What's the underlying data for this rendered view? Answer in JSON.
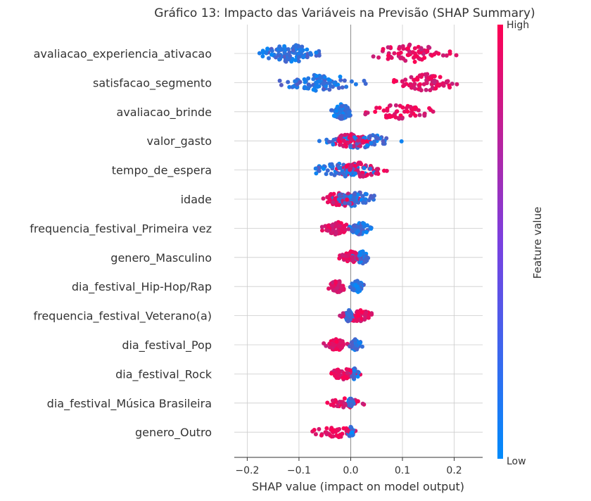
{
  "chart_data": {
    "type": "scatter",
    "title": "Gráfico 13: Impacto das Variáveis na Previsão (SHAP Summary)",
    "xlabel": "SHAP value (impact on model output)",
    "xlim": [
      -0.225,
      0.255
    ],
    "xticks": [
      -0.2,
      -0.1,
      0.0,
      0.1,
      0.2
    ],
    "xtick_labels": [
      "−0.2",
      "−0.1",
      "0.0",
      "0.1",
      "0.2"
    ],
    "colorbar": {
      "label": "Feature value",
      "high": "High",
      "low": "Low"
    },
    "colors": {
      "low": "#008bfb",
      "high": "#ff0052",
      "grid": "#cccccc",
      "zero_line": "#999999"
    },
    "features": [
      {
        "name": "avaliacao_experiencia_ativacao",
        "low_range": [
          -0.2,
          -0.03
        ],
        "high_range": [
          0.0,
          0.23
        ],
        "density": 1.0
      },
      {
        "name": "satisfacao_segmento",
        "low_range": [
          -0.17,
          0.05
        ],
        "high_range": [
          0.06,
          0.235
        ],
        "density": 0.95
      },
      {
        "name": "avaliacao_brinde",
        "low_range": [
          -0.045,
          0.01
        ],
        "high_range": [
          0.0,
          0.185
        ],
        "density": 0.8
      },
      {
        "name": "valor_gasto",
        "low_range": [
          -0.07,
          0.11
        ],
        "high_range": [
          -0.05,
          0.05
        ],
        "density": 0.8
      },
      {
        "name": "tempo_de_espera",
        "low_range": [
          -0.095,
          0.06
        ],
        "high_range": [
          -0.05,
          0.09
        ],
        "density": 0.8
      },
      {
        "name": "idade",
        "low_range": [
          -0.05,
          0.065
        ],
        "high_range": [
          -0.065,
          0.03
        ],
        "density": 0.85
      },
      {
        "name": "frequencia_festival_Primeira vez",
        "low_range": [
          -0.01,
          0.045
        ],
        "high_range": [
          -0.065,
          0.01
        ],
        "density": 0.65
      },
      {
        "name": "genero_Masculino",
        "low_range": [
          0.0,
          0.045
        ],
        "high_range": [
          -0.03,
          0.03
        ],
        "density": 0.6
      },
      {
        "name": "dia_festival_Hip-Hop/Rap",
        "low_range": [
          -0.005,
          0.03
        ],
        "high_range": [
          -0.05,
          0.0
        ],
        "density": 0.6
      },
      {
        "name": "frequencia_festival_Veterano(a)",
        "low_range": [
          -0.015,
          0.005
        ],
        "high_range": [
          -0.03,
          0.055
        ],
        "density": 0.6
      },
      {
        "name": "dia_festival_Pop",
        "low_range": [
          -0.005,
          0.025
        ],
        "high_range": [
          -0.055,
          0.0
        ],
        "density": 0.55
      },
      {
        "name": "dia_festival_Rock",
        "low_range": [
          -0.005,
          0.02
        ],
        "high_range": [
          -0.055,
          0.03
        ],
        "density": 0.5
      },
      {
        "name": "dia_festival_Música Brasileira",
        "low_range": [
          -0.008,
          0.008
        ],
        "high_range": [
          -0.06,
          0.035
        ],
        "density": 0.45
      },
      {
        "name": "genero_Outro",
        "low_range": [
          -0.008,
          0.008
        ],
        "high_range": [
          -0.1,
          0.045
        ],
        "density": 0.45
      }
    ]
  }
}
